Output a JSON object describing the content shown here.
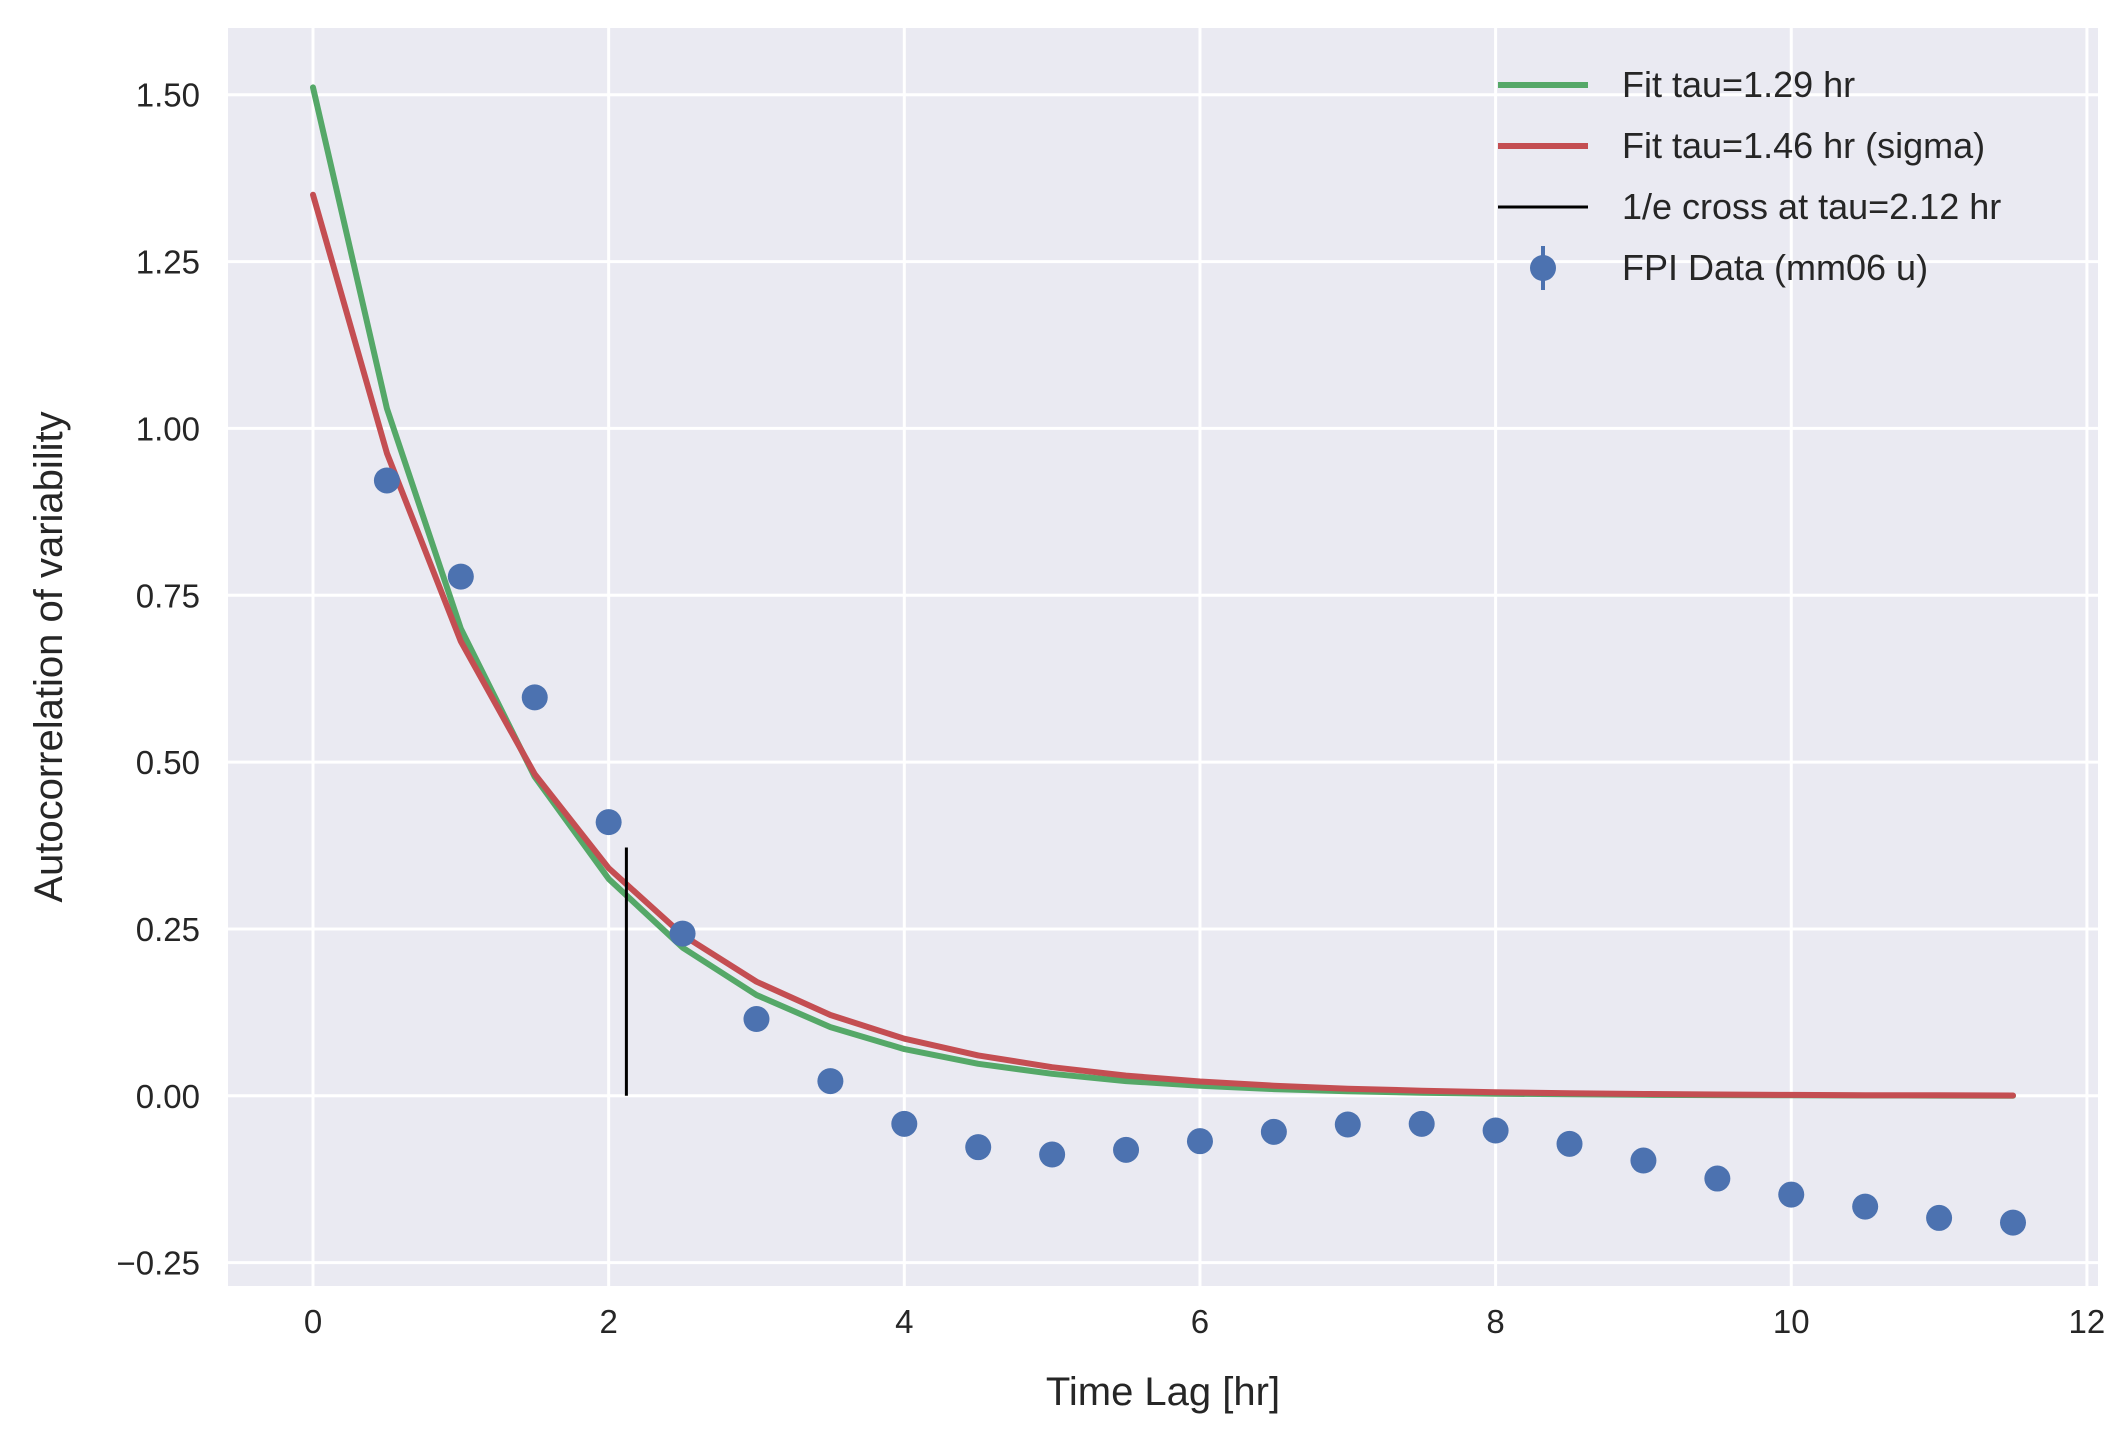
{
  "chart_data": {
    "type": "line",
    "title": "",
    "xlabel": "Time Lag [hr]",
    "ylabel": "Autocorrelation of variability",
    "xlim": [
      -0.575,
      12.075
    ],
    "ylim": [
      -0.285,
      1.6
    ],
    "grid": true,
    "legend_position": "top-right",
    "x_ticks": [
      0,
      2,
      4,
      6,
      8,
      10,
      12
    ],
    "x_tick_labels": [
      "0",
      "2",
      "4",
      "6",
      "8",
      "10",
      "12"
    ],
    "y_ticks": [
      -0.25,
      0.0,
      0.25,
      0.5,
      0.75,
      1.0,
      1.25,
      1.5
    ],
    "y_tick_labels": [
      "−0.25",
      "0.00",
      "0.25",
      "0.50",
      "0.75",
      "1.00",
      "1.25",
      "1.50"
    ],
    "x": [
      0,
      0.5,
      1,
      1.5,
      2,
      2.5,
      3,
      3.5,
      4,
      4.5,
      5,
      5.5,
      6,
      6.5,
      7,
      7.5,
      8,
      8.5,
      9,
      9.5,
      10,
      10.5,
      11,
      11.5
    ],
    "series": [
      {
        "name": "Fit tau=1.29 hr",
        "kind": "line",
        "color": "#55a868",
        "values": [
          1.511,
          1.03,
          0.7,
          0.478,
          0.325,
          0.222,
          0.151,
          0.103,
          0.07,
          0.048,
          0.033,
          0.022,
          0.015,
          0.01,
          0.0069,
          0.0047,
          0.0032,
          0.0022,
          0.0015,
          0.001,
          0.0007,
          0.0005,
          0.0003,
          0.0002
        ]
      },
      {
        "name": "Fit tau=1.46 hr (sigma)",
        "kind": "line",
        "color": "#c44e52",
        "values": [
          1.35,
          0.963,
          0.681,
          0.482,
          0.341,
          0.241,
          0.171,
          0.121,
          0.0856,
          0.0605,
          0.0428,
          0.0303,
          0.0214,
          0.0152,
          0.0107,
          0.0076,
          0.0054,
          0.0038,
          0.0027,
          0.0019,
          0.0013,
          0.0009,
          0.0007,
          0.0005
        ]
      },
      {
        "name": "1/e cross at tau=2.12 hr",
        "kind": "vline",
        "color": "#000000",
        "x": 2.12,
        "y_range": [
          0,
          0.372
        ]
      },
      {
        "name": "FPI Data (mm06 u)",
        "kind": "errorbar",
        "color": "#4c72b0",
        "x": [
          0.5,
          1,
          1.5,
          2,
          2.5,
          3,
          3.5,
          4,
          4.5,
          5,
          5.5,
          6,
          6.5,
          7,
          7.5,
          8,
          8.5,
          9,
          9.5,
          10,
          10.5,
          11,
          11.5
        ],
        "values": [
          0.922,
          0.778,
          0.597,
          0.41,
          0.243,
          0.115,
          0.022,
          -0.042,
          -0.077,
          -0.088,
          -0.081,
          -0.068,
          -0.054,
          -0.043,
          -0.042,
          -0.052,
          -0.072,
          -0.097,
          -0.124,
          -0.148,
          -0.166,
          -0.183,
          -0.19
        ]
      }
    ]
  },
  "style": {
    "axes_background": "#eaeaf2",
    "grid_color": "#ffffff",
    "text_color": "#262626"
  }
}
